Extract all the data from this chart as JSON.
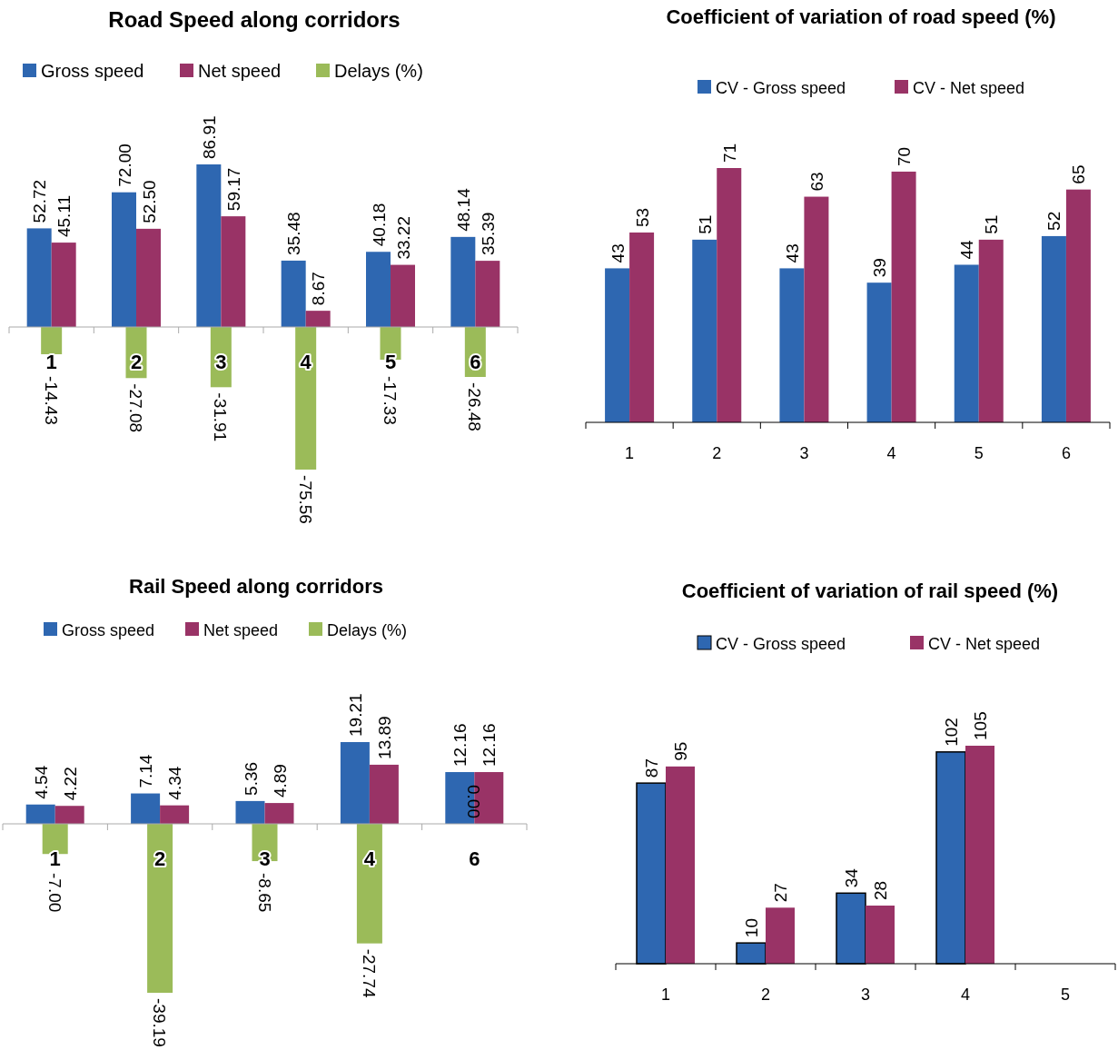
{
  "chart_data": [
    {
      "type": "bar",
      "title": "Road Speed along corridors",
      "categories": [
        "1",
        "2",
        "3",
        "4",
        "5",
        "6"
      ],
      "legend": "top",
      "series": [
        {
          "name": "Gross speed",
          "color": "#2e67b1",
          "values": [
            52.72,
            72.0,
            86.91,
            35.48,
            40.18,
            48.14
          ],
          "value_labels": [
            "52.72",
            "72.00",
            "86.91",
            "35.48",
            "40.18",
            "48.14"
          ]
        },
        {
          "name": "Net speed",
          "color": "#993366",
          "values": [
            45.11,
            52.5,
            59.17,
            8.67,
            33.22,
            35.39
          ],
          "value_labels": [
            "45.11",
            "52.50",
            "59.17",
            "8.67",
            "33.22",
            "35.39"
          ]
        },
        {
          "name": "Delays (%)",
          "color": "#9bbb59",
          "values": [
            -14.43,
            -27.08,
            -31.91,
            -75.56,
            -17.33,
            -26.48
          ],
          "value_labels": [
            "-14.43",
            "-27.08",
            "-31.91",
            "-75.56",
            "-17.33",
            "-26.48"
          ]
        }
      ]
    },
    {
      "type": "bar",
      "title": "Coefficient of variation of road speed (%)",
      "categories": [
        "1",
        "2",
        "3",
        "4",
        "5",
        "6"
      ],
      "legend": "top",
      "data_labels": true,
      "series": [
        {
          "name": "CV - Gross speed",
          "color": "#2e67b1",
          "values": [
            43,
            51,
            43,
            39,
            44,
            52
          ]
        },
        {
          "name": "CV - Net speed",
          "color": "#993366",
          "values": [
            53,
            71,
            63,
            70,
            51,
            65
          ]
        }
      ]
    },
    {
      "type": "bar",
      "title": "Rail Speed along corridors",
      "categories": [
        "1",
        "2",
        "3",
        "4",
        "6"
      ],
      "legend": "top",
      "series": [
        {
          "name": "Gross speed",
          "color": "#2e67b1",
          "values": [
            4.54,
            7.14,
            5.36,
            19.21,
            12.16
          ],
          "value_labels": [
            "4.54",
            "7.14",
            "5.36",
            "19.21",
            "12.16"
          ]
        },
        {
          "name": "Net speed",
          "color": "#993366",
          "values": [
            4.22,
            4.34,
            4.89,
            13.89,
            12.16
          ],
          "value_labels": [
            "4.22",
            "4.34",
            "4.89",
            "13.89",
            "12.16"
          ]
        },
        {
          "name": "Delays (%)",
          "color": "#9bbb59",
          "values": [
            -7.0,
            -39.19,
            -8.65,
            -27.74,
            0.0
          ],
          "value_labels": [
            "-7.00",
            "-39.19",
            "-8.65",
            "-27.74",
            "0.00"
          ]
        }
      ]
    },
    {
      "type": "bar",
      "title": "Coefficient of variation of rail speed (%)",
      "categories": [
        "1",
        "2",
        "3",
        "4",
        "5"
      ],
      "legend": "top",
      "data_labels": true,
      "series": [
        {
          "name": "CV - Gross speed",
          "color": "#2e67b1",
          "values": [
            87,
            10,
            34,
            102,
            null
          ]
        },
        {
          "name": "CV - Net speed",
          "color": "#993366",
          "values": [
            95,
            27,
            28,
            105,
            null
          ]
        }
      ]
    }
  ]
}
